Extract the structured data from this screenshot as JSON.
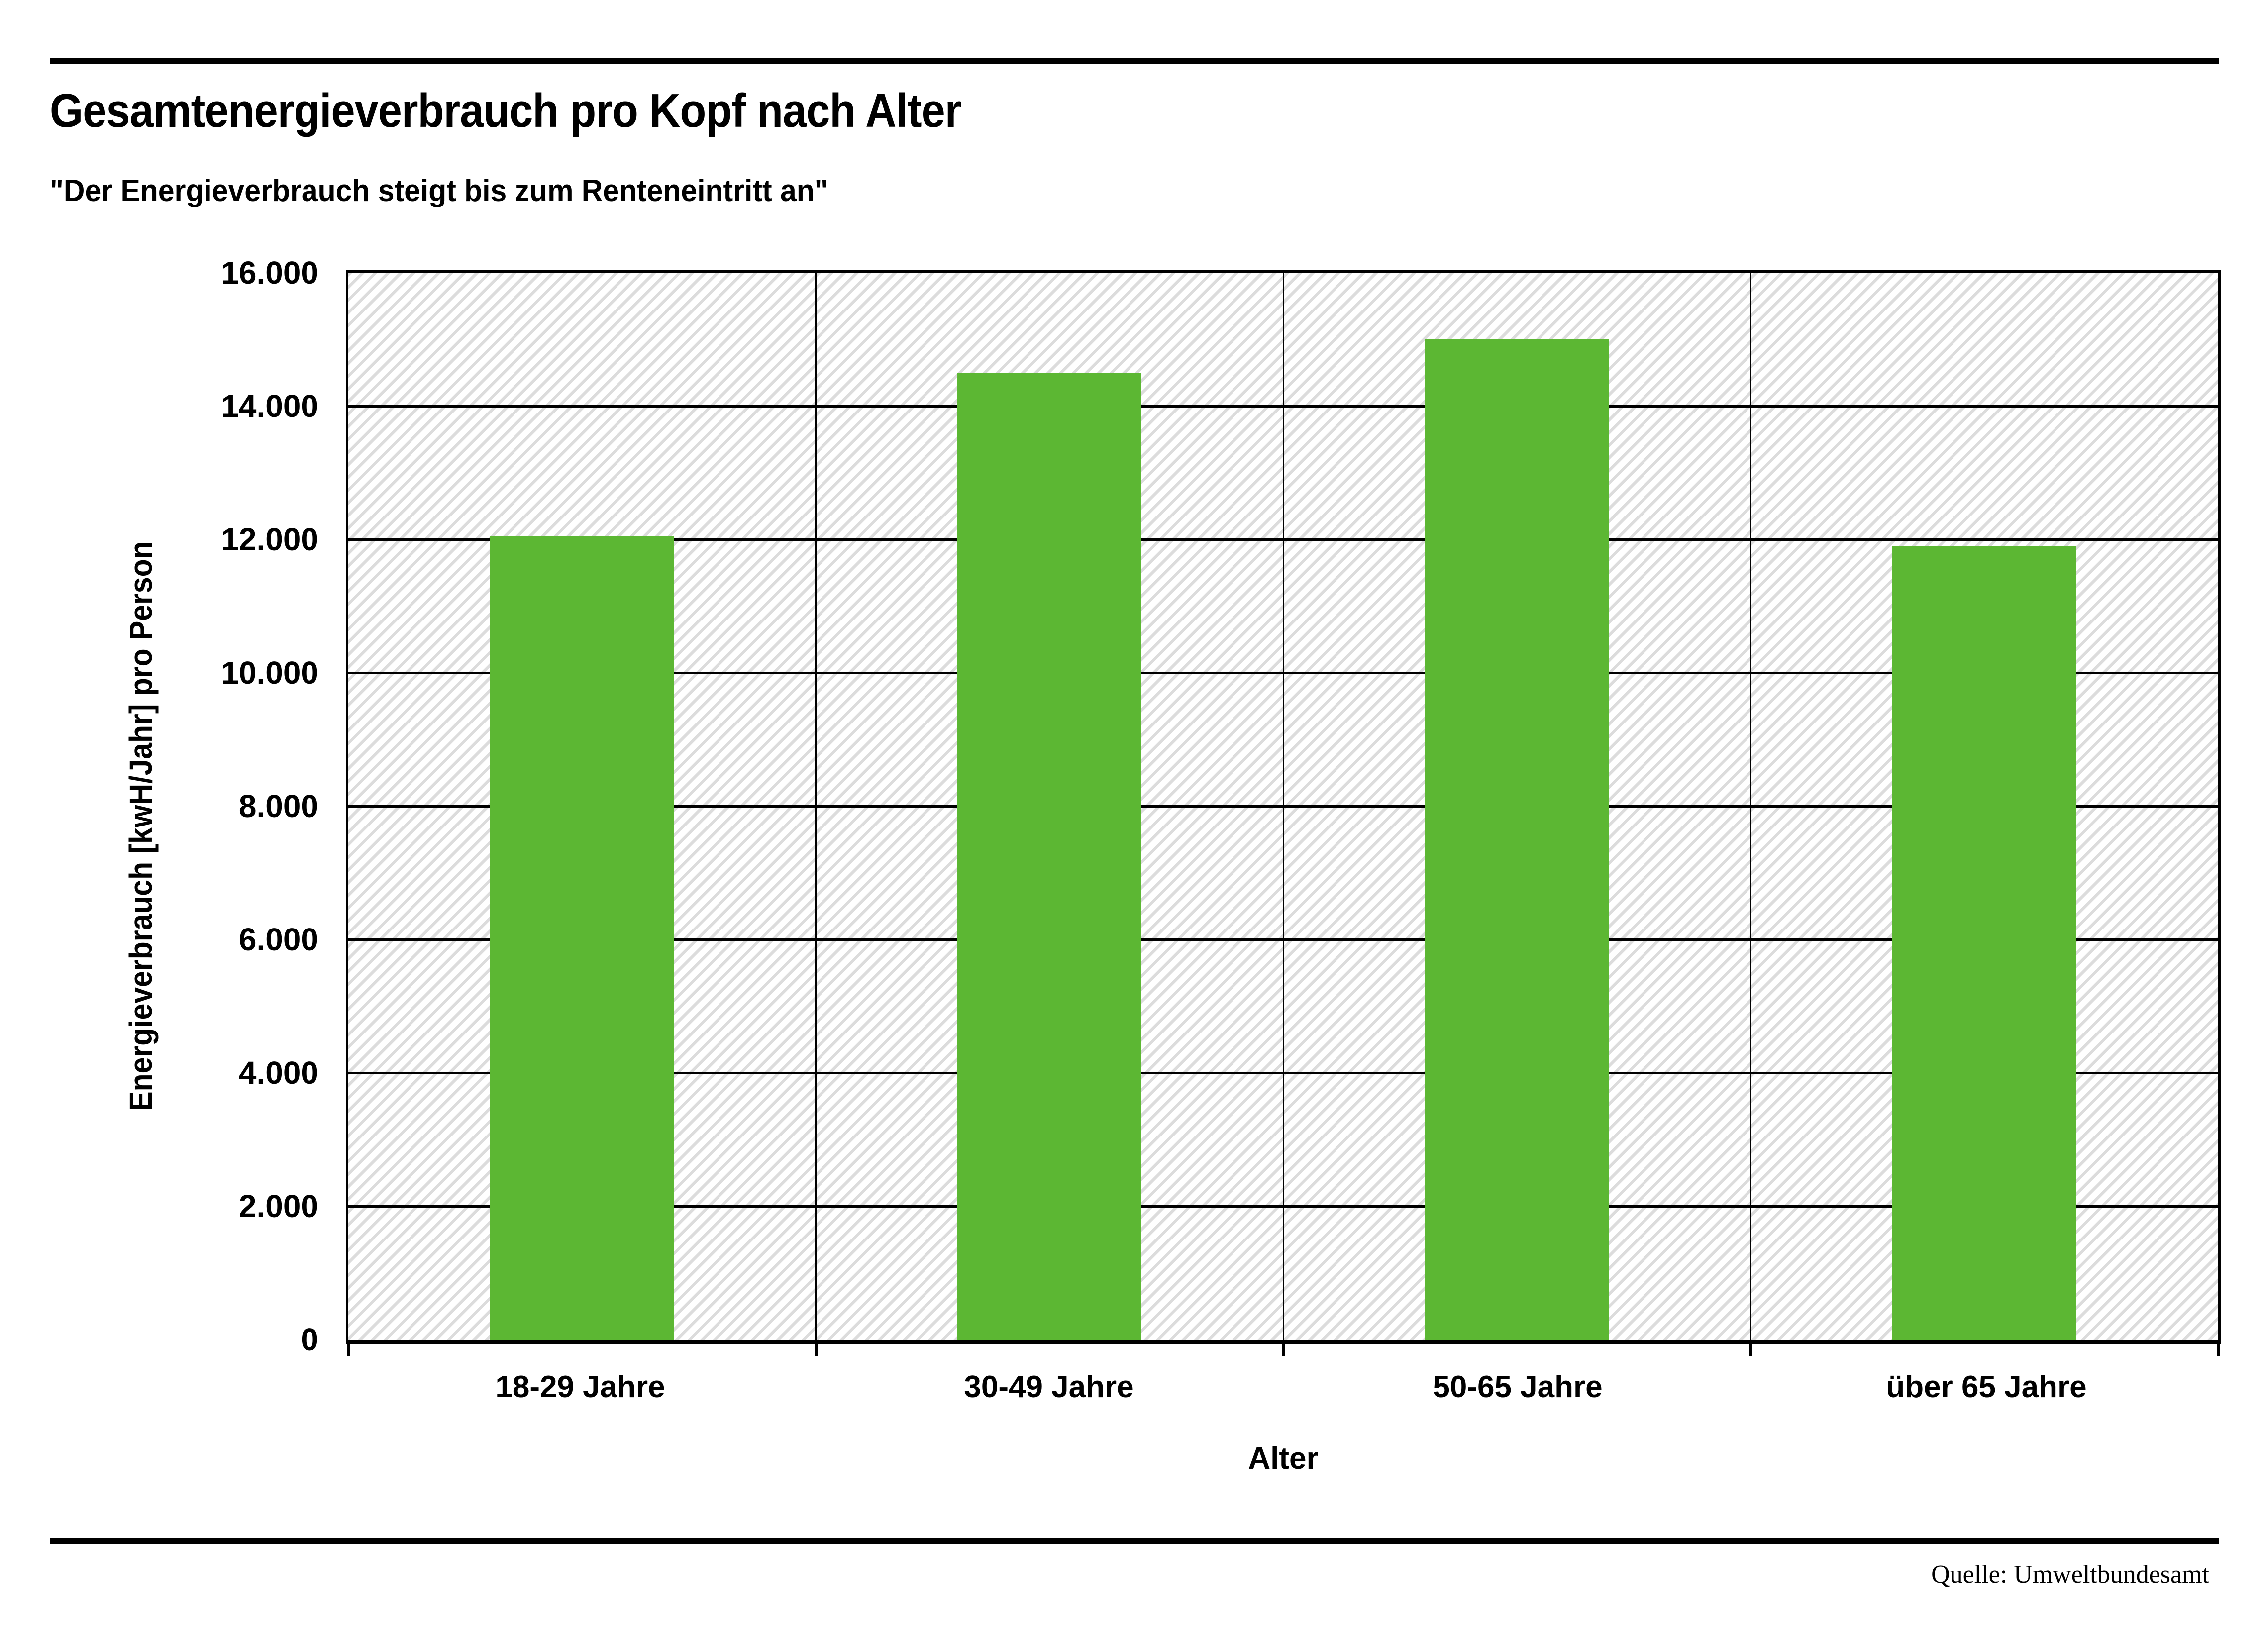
{
  "header": {
    "title": "Gesamtenergieverbrauch pro Kopf nach Alter",
    "subtitle": "\"Der Energieverbrauch steigt bis zum Renteneintritt an\""
  },
  "chart_data": {
    "type": "bar",
    "title": "Gesamtenergieverbrauch pro Kopf nach Alter",
    "subtitle": "\"Der Energieverbrauch steigt bis zum Renteneintritt an\"",
    "categories": [
      "18-29 Jahre",
      "30-49 Jahre",
      "50-65 Jahre",
      "über 65 Jahre"
    ],
    "values": [
      12050,
      14500,
      15000,
      11900
    ],
    "xlabel": "Alter",
    "ylabel": "Energieverbrauch [kwH/Jahr] pro Person",
    "ylim": [
      0,
      16000
    ],
    "ytick_step": 2000,
    "ytick_labels": [
      "16.000",
      "14.000",
      "12.000",
      "10.000",
      "8.000",
      "6.000",
      "4.000",
      "2.000",
      "0"
    ],
    "grid": true,
    "legend_position": "none",
    "bar_color": "#5cb733",
    "gridline_color": "#000000",
    "hatch_background": true
  },
  "footer": {
    "source": "Quelle: Umweltbundesamt"
  }
}
